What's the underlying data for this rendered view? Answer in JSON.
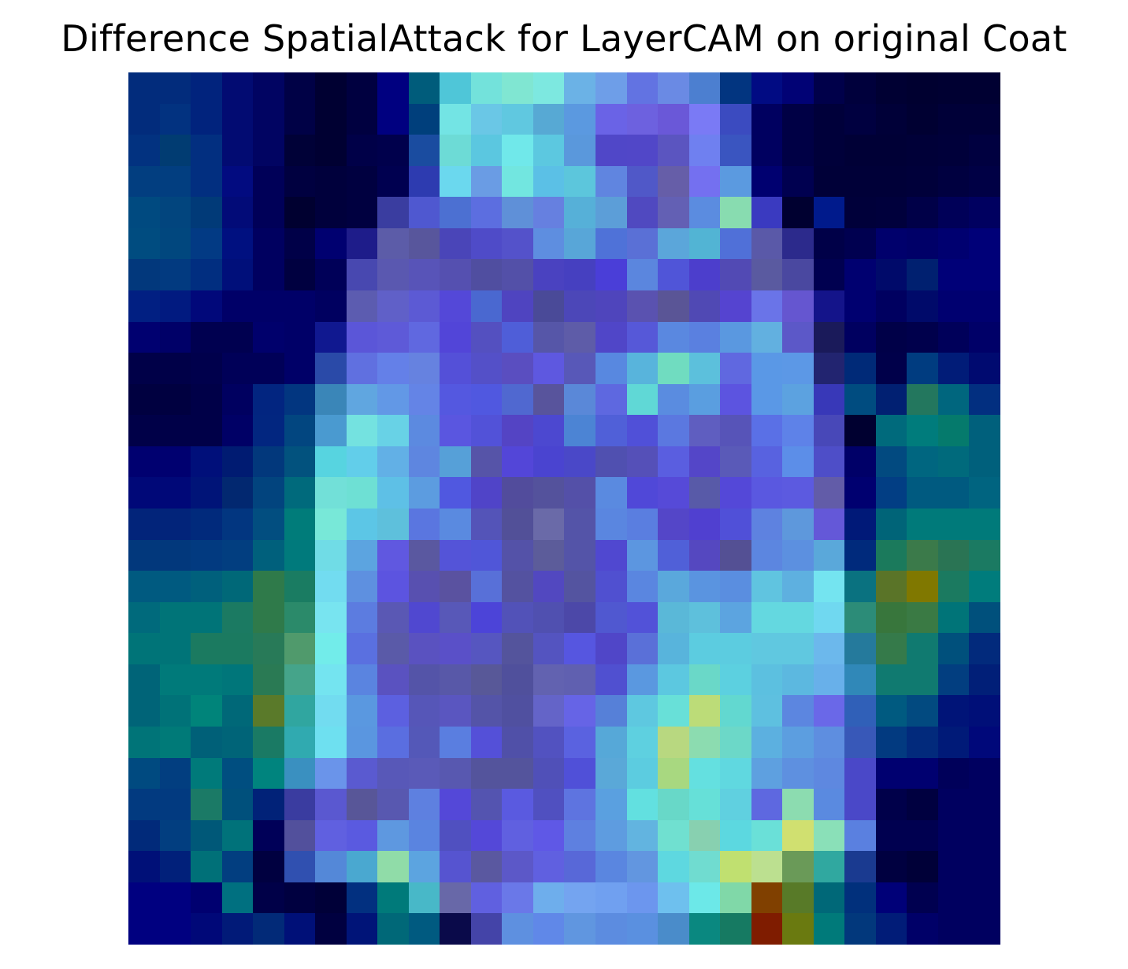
{
  "title": "Difference SpatialAttack for LayerCAM on original Coat",
  "image": {
    "rows": 28,
    "cols": 28,
    "pixels": [
      [
        "#022c7c",
        "#022c7c",
        "#01237d",
        "#020b72",
        "#010462",
        "#000146",
        "#000032",
        "#000040",
        "#000080",
        "#005c7b",
        "#4fc6d8",
        "#73e2db",
        "#80e6d2",
        "#7de8e0",
        "#6bb2e6",
        "#6e9ee8",
        "#6273e2",
        "#6a8ae4",
        "#4c7fd0",
        "#023580",
        "#010b83",
        "#010275",
        "#00004a",
        "#00003c",
        "#000033",
        "#000030",
        "#000032",
        "#000032"
      ],
      [
        "#022c7c",
        "#023280",
        "#01237d",
        "#020b72",
        "#010462",
        "#000146",
        "#000032",
        "#000040",
        "#000080",
        "#003f7c",
        "#73e4e4",
        "#6ac7e6",
        "#60c8e0",
        "#57a9d4",
        "#5b99e0",
        "#6a63e6",
        "#6d61df",
        "#6a58d8",
        "#7a7af5",
        "#3b4bc0",
        "#000060",
        "#000045",
        "#00003a",
        "#000040",
        "#000038",
        "#000032",
        "#000038",
        "#000038"
      ],
      [
        "#023280",
        "#013c72",
        "#022f80",
        "#020b72",
        "#010462",
        "#000137",
        "#000032",
        "#000048",
        "#00004c",
        "#1a4ca0",
        "#6ddbd6",
        "#5bc7e0",
        "#70e8ea",
        "#5cc8e0",
        "#5a98dc",
        "#5047c8",
        "#5147c8",
        "#5b55c0",
        "#6f80f0",
        "#3a55c0",
        "#000060",
        "#000045",
        "#00003a",
        "#000036",
        "#000036",
        "#000038",
        "#00003a",
        "#000040"
      ],
      [
        "#023e80",
        "#023e80",
        "#022f80",
        "#020b80",
        "#000058",
        "#000040",
        "#00003c",
        "#000040",
        "#000050",
        "#2d3bb0",
        "#6bd8ee",
        "#6a9ce4",
        "#72e6e0",
        "#5bc0e6",
        "#5cc6dc",
        "#6085e0",
        "#5058c8",
        "#665ea8",
        "#7470f0",
        "#5b9ae0",
        "#000070",
        "#000050",
        "#000038",
        "#000038",
        "#000038",
        "#00003a",
        "#000040",
        "#000045"
      ],
      [
        "#004a80",
        "#02457e",
        "#013a78",
        "#020b78",
        "#000058",
        "#000030",
        "#00003c",
        "#000040",
        "#3a3da0",
        "#4f58d0",
        "#4c70d2",
        "#5c6ee0",
        "#5f90d8",
        "#6680e0",
        "#56b0d8",
        "#5c9ed8",
        "#5049c0",
        "#6360b4",
        "#5b8ce0",
        "#88dcb0",
        "#3a3ac0",
        "#000030",
        "#001a8c",
        "#00003a",
        "#00003c",
        "#000048",
        "#000058",
        "#000060"
      ],
      [
        "#004c80",
        "#01477e",
        "#023a84",
        "#001080",
        "#000060",
        "#000048",
        "#000070",
        "#1e1c8a",
        "#5c5ca8",
        "#58569c",
        "#4a45b8",
        "#4f4bc8",
        "#5452ca",
        "#5e8ee0",
        "#58a6d8",
        "#4f72d8",
        "#5a70d6",
        "#5ba6da",
        "#52b4d4",
        "#5070d8",
        "#5a59a8",
        "#2c2a8c",
        "#000048",
        "#000050",
        "#00006c",
        "#000068",
        "#000070",
        "#000078"
      ],
      [
        "#02387c",
        "#023a80",
        "#012e80",
        "#000f7a",
        "#000060",
        "#000040",
        "#000058",
        "#4848b0",
        "#5a58b0",
        "#5854b8",
        "#5550b0",
        "#504ea0",
        "#5350a8",
        "#4a42c0",
        "#4640c0",
        "#4a3ed8",
        "#5b86de",
        "#5055d8",
        "#4c3ecc",
        "#524ab4",
        "#5a5aa0",
        "#4a48a0",
        "#000050",
        "#000070",
        "#000a6a",
        "#002070",
        "#000078",
        "#000078"
      ],
      [
        "#011f82",
        "#011a80",
        "#01087a",
        "#000068",
        "#000068",
        "#000068",
        "#000060",
        "#5c5cb0",
        "#6060c8",
        "#5c5ad4",
        "#5448d8",
        "#4a68d0",
        "#4f44c0",
        "#4a4a98",
        "#4c47b8",
        "#4f45bc",
        "#5a52b0",
        "#5a5596",
        "#5049b4",
        "#5544d0",
        "#6a74e8",
        "#6556d0",
        "#14148a",
        "#000070",
        "#000060",
        "#000a6a",
        "#000070",
        "#000070"
      ],
      [
        "#000070",
        "#000068",
        "#000050",
        "#000050",
        "#00006c",
        "#000068",
        "#101890",
        "#5b56d8",
        "#5e5ad8",
        "#6068e0",
        "#5245d8",
        "#5450c0",
        "#4f5ed8",
        "#5656a8",
        "#5e5ca8",
        "#5046c8",
        "#5658d8",
        "#5a88e0",
        "#5a80e0",
        "#5a98e0",
        "#62b0e0",
        "#5c58c8",
        "#1a1a5a",
        "#000060",
        "#000048",
        "#00004c",
        "#00005a",
        "#000068"
      ],
      [
        "#000048",
        "#000048",
        "#00004c",
        "#000058",
        "#000058",
        "#000068",
        "#2a4aa8",
        "#6070e0",
        "#6480e8",
        "#6682e0",
        "#5450d8",
        "#5450c8",
        "#5a4ec0",
        "#5e58e0",
        "#5858b8",
        "#5888e0",
        "#58b4dc",
        "#70dcc0",
        "#5cc0dc",
        "#6068e0",
        "#5a98e6",
        "#5c98e6",
        "#222470",
        "#002a78",
        "#00004a",
        "#003c80",
        "#011c78",
        "#000a70"
      ],
      [
        "#000040",
        "#000040",
        "#000048",
        "#000060",
        "#022580",
        "#023680",
        "#3a86b8",
        "#60a6e0",
        "#6298e6",
        "#6484e6",
        "#5458e0",
        "#5058e0",
        "#5068d0",
        "#58549c",
        "#5a88d8",
        "#5e68e0",
        "#60d8d6",
        "#5a8ce0",
        "#5a9ee0",
        "#5c54e0",
        "#5a98e6",
        "#5ca2e0",
        "#3838b8",
        "#004c80",
        "#012072",
        "#23775e",
        "#00667e",
        "#022f80"
      ],
      [
        "#000048",
        "#000048",
        "#000048",
        "#000066",
        "#022680",
        "#024680",
        "#4a9ad0",
        "#74e2e0",
        "#68d2e6",
        "#5c8ae0",
        "#5a56e0",
        "#5252d8",
        "#5444c4",
        "#4c48d0",
        "#4c84d4",
        "#5060d8",
        "#5050d8",
        "#5b78e0",
        "#5f5ec0",
        "#5754b8",
        "#5a70e6",
        "#5e82e8",
        "#4848b8",
        "#000030",
        "#006a7c",
        "#007c7c",
        "#057a6c",
        "#00607c"
      ],
      [
        "#000070",
        "#000070",
        "#000f7a",
        "#001b72",
        "#02387c",
        "#02527e",
        "#57d4e0",
        "#62ceea",
        "#62b0e6",
        "#5e86e0",
        "#56a0d8",
        "#5654a8",
        "#5346d8",
        "#4a44d0",
        "#4a48c8",
        "#5050b0",
        "#5550b8",
        "#5a5ee0",
        "#5446c8",
        "#5a5ab8",
        "#5862e0",
        "#5c8ee8",
        "#4e4ec8",
        "#000068",
        "#024a80",
        "#006680",
        "#006a7c",
        "#00607c"
      ],
      [
        "#000878",
        "#000878",
        "#001478",
        "#022870",
        "#02447e",
        "#006a7c",
        "#72e0d8",
        "#6ee0d4",
        "#5ec0e6",
        "#5c9ce0",
        "#5058e0",
        "#5044c8",
        "#524c9c",
        "#54529c",
        "#5450a8",
        "#5a8ae0",
        "#5048d8",
        "#564ad8",
        "#585aa8",
        "#5448d8",
        "#5a58e0",
        "#5c5ae0",
        "#625ca8",
        "#000070",
        "#023e84",
        "#005a80",
        "#005a80",
        "#006480"
      ],
      [
        "#02247a",
        "#02247a",
        "#012a7c",
        "#023680",
        "#024e80",
        "#007c7a",
        "#78e8d8",
        "#5cc6e6",
        "#5ec0dc",
        "#5a76e0",
        "#5a8ae0",
        "#5454b8",
        "#525098",
        "#6a6aa8",
        "#5454a8",
        "#5a86e0",
        "#5a7ee0",
        "#5446c8",
        "#5040d0",
        "#5050d8",
        "#5e82e0",
        "#5e98dc",
        "#6458d8",
        "#001978",
        "#006478",
        "#007a7a",
        "#007a7a",
        "#007a7a"
      ],
      [
        "#02387c",
        "#02387c",
        "#023a80",
        "#023e80",
        "#00607c",
        "#007a7c",
        "#70dce6",
        "#5ca4e0",
        "#6058e0",
        "#5a58a0",
        "#5454d8",
        "#5056d8",
        "#5452a8",
        "#5c5c9a",
        "#5454a8",
        "#5048d0",
        "#5c96e0",
        "#5060d8",
        "#5548c0",
        "#545094",
        "#5c86e0",
        "#5c90e0",
        "#5aa8da",
        "#002a7c",
        "#1b7a5c",
        "#3b7a4a",
        "#2a7454",
        "#1b7a62"
      ],
      [
        "#005a80",
        "#005a80",
        "#00607c",
        "#006878",
        "#2f7a4a",
        "#1a7c62",
        "#72dcf0",
        "#5e90e0",
        "#5c54e0",
        "#5850b0",
        "#5a52a0",
        "#5870d8",
        "#5452a0",
        "#5248c0",
        "#5454a0",
        "#5050d0",
        "#5a86e0",
        "#5aa8dc",
        "#5a94e0",
        "#5a8ee0",
        "#60c4e0",
        "#5eb0e0",
        "#74e4f0",
        "#0a7280",
        "#5a7428",
        "#807800",
        "#1b7a60",
        "#007c7c"
      ],
      [
        "#006a7c",
        "#007478",
        "#007478",
        "#1b7a62",
        "#2f7a4a",
        "#2b8a6a",
        "#78e4f0",
        "#5c7ce0",
        "#5a58b4",
        "#5048d0",
        "#5858b8",
        "#4c44d8",
        "#5252b8",
        "#5050b0",
        "#4c48a8",
        "#5058d0",
        "#5252d8",
        "#5ab8d8",
        "#5ec0dc",
        "#5ca4e0",
        "#64d8e0",
        "#64d8e0",
        "#70d8f0",
        "#2c8c78",
        "#38763c",
        "#3a7a44",
        "#007478",
        "#00507c"
      ],
      [
        "#007478",
        "#007478",
        "#1b7a60",
        "#1b7a60",
        "#287a58",
        "#509a6c",
        "#72ecea",
        "#5a70e0",
        "#5a5aa8",
        "#5a52c0",
        "#5a50c8",
        "#5656c0",
        "#54549c",
        "#5454c0",
        "#5656e0",
        "#5046c8",
        "#5a70d8",
        "#58b4dc",
        "#5ccce0",
        "#5ccce0",
        "#60c8e0",
        "#60c8e0",
        "#6cb8ec",
        "#257a9c",
        "#357a4a",
        "#107a70",
        "#00507c",
        "#022a7c"
      ],
      [
        "#006478",
        "#007a7a",
        "#007a7a",
        "#00767a",
        "#2a7a54",
        "#45a48a",
        "#74e4f0",
        "#5a84e0",
        "#5a52c0",
        "#5454a8",
        "#5858a8",
        "#585898",
        "#50509c",
        "#6262b0",
        "#6060b0",
        "#5050d0",
        "#5a98e0",
        "#5cc8e0",
        "#6ad8c8",
        "#5cd0e0",
        "#5cc0e0",
        "#5cb8e0",
        "#68b0ea",
        "#3088b8",
        "#107a70",
        "#107a70",
        "#023e80",
        "#011f78"
      ],
      [
        "#006478",
        "#007278",
        "#00847a",
        "#006878",
        "#5a7a2a",
        "#30a6a0",
        "#72dcf0",
        "#5a98e0",
        "#5c60e0",
        "#5656b8",
        "#5a56c0",
        "#5454a8",
        "#5050a0",
        "#6464c8",
        "#6664e6",
        "#5680d8",
        "#5ec8e0",
        "#68e0d8",
        "#bcdc78",
        "#62d8d0",
        "#5ec0e0",
        "#5c86e0",
        "#6a68e8",
        "#3060b8",
        "#005a80",
        "#024a80",
        "#001478",
        "#000f78"
      ],
      [
        "#007478",
        "#007a78",
        "#006078",
        "#006478",
        "#1a7a64",
        "#30aab0",
        "#6ee0f0",
        "#5a96e0",
        "#5a6ee0",
        "#5458b8",
        "#5a7ee0",
        "#5450d8",
        "#5050a8",
        "#5252c0",
        "#5a62e0",
        "#56a8d8",
        "#5ed0e0",
        "#b8d880",
        "#8cdcb0",
        "#6cd8c8",
        "#5cb0e0",
        "#5c9ee0",
        "#5e8ee0",
        "#3858b8",
        "#023a80",
        "#022a7c",
        "#001a78",
        "#00087a"
      ],
      [
        "#004a80",
        "#023e80",
        "#007a7a",
        "#004e80",
        "#00847e",
        "#3a90c0",
        "#6a94ea",
        "#5a5ad0",
        "#5858b8",
        "#5a5ab8",
        "#5858b0",
        "#54549c",
        "#54549c",
        "#5050b8",
        "#5050d8",
        "#5aa8d8",
        "#5ccce0",
        "#a8d880",
        "#64e0e0",
        "#60d8e0",
        "#5ea0e0",
        "#5e90e0",
        "#5e88e0",
        "#4a48c8",
        "#000070",
        "#000070",
        "#00005a",
        "#000060"
      ],
      [
        "#023a80",
        "#023a80",
        "#1b7a66",
        "#00507c",
        "#012278",
        "#3a3ca0",
        "#5a58d0",
        "#585698",
        "#5858b0",
        "#5e80e0",
        "#5448d8",
        "#5454b0",
        "#5a5ae0",
        "#5050c0",
        "#5e74e0",
        "#5aa0e0",
        "#62e0e0",
        "#68d8c8",
        "#66e0d8",
        "#60d0e0",
        "#5e68e0",
        "#8cdcb0",
        "#5a8ae0",
        "#4a48c8",
        "#00004a",
        "#000040",
        "#000060",
        "#000060"
      ],
      [
        "#012a7a",
        "#023e80",
        "#005878",
        "#00727a",
        "#000058",
        "#52509c",
        "#6060e0",
        "#5a5ae0",
        "#5e98e0",
        "#5a84e0",
        "#5050c0",
        "#5448d8",
        "#6060e0",
        "#5f58e6",
        "#5e80e0",
        "#5e9ce0",
        "#62b4e0",
        "#70e0d0",
        "#88d0b0",
        "#5cd8e0",
        "#6ae0d8",
        "#d0e070",
        "#8ae0b8",
        "#5a80e0",
        "#000050",
        "#000050",
        "#000060",
        "#000060"
      ],
      [
        "#001078",
        "#01207a",
        "#007078",
        "#023e80",
        "#000040",
        "#3050b0",
        "#5488d8",
        "#4aa8d0",
        "#90dca8",
        "#5ca4e0",
        "#5654d0",
        "#5a58a0",
        "#5c58c8",
        "#6060e0",
        "#5868d8",
        "#5a86e0",
        "#6296e0",
        "#5ed8e0",
        "#70dcd0",
        "#c0e070",
        "#bce090",
        "#6a9a58",
        "#30a8a0",
        "#1a3a90",
        "#000040",
        "#000038",
        "#000060",
        "#000060"
      ],
      [
        "#000080",
        "#000080",
        "#000070",
        "#007080",
        "#000048",
        "#000040",
        "#000038",
        "#023080",
        "#007a7a",
        "#48b8c8",
        "#6868a8",
        "#6060e0",
        "#6a78e8",
        "#6eaeec",
        "#74a4f0",
        "#70a0f0",
        "#6c96ee",
        "#6ec0ee",
        "#6ce8e8",
        "#80d8a8",
        "#804000",
        "#587a28",
        "#006878",
        "#01307c",
        "#000078",
        "#000050",
        "#000060",
        "#000060"
      ],
      [
        "#000080",
        "#000080",
        "#000878",
        "#011a78",
        "#022a78",
        "#001078",
        "#000040",
        "#001478",
        "#006878",
        "#005a80",
        "#0a0a4a",
        "#4444a8",
        "#5e90e0",
        "#6088e8",
        "#6096e0",
        "#5c8ce0",
        "#5a90e0",
        "#4a8cca",
        "#0a8880",
        "#167a62",
        "#7f1c00",
        "#6a7a10",
        "#007a7a",
        "#02387c",
        "#011c78",
        "#000068",
        "#000060",
        "#000060"
      ]
    ]
  }
}
